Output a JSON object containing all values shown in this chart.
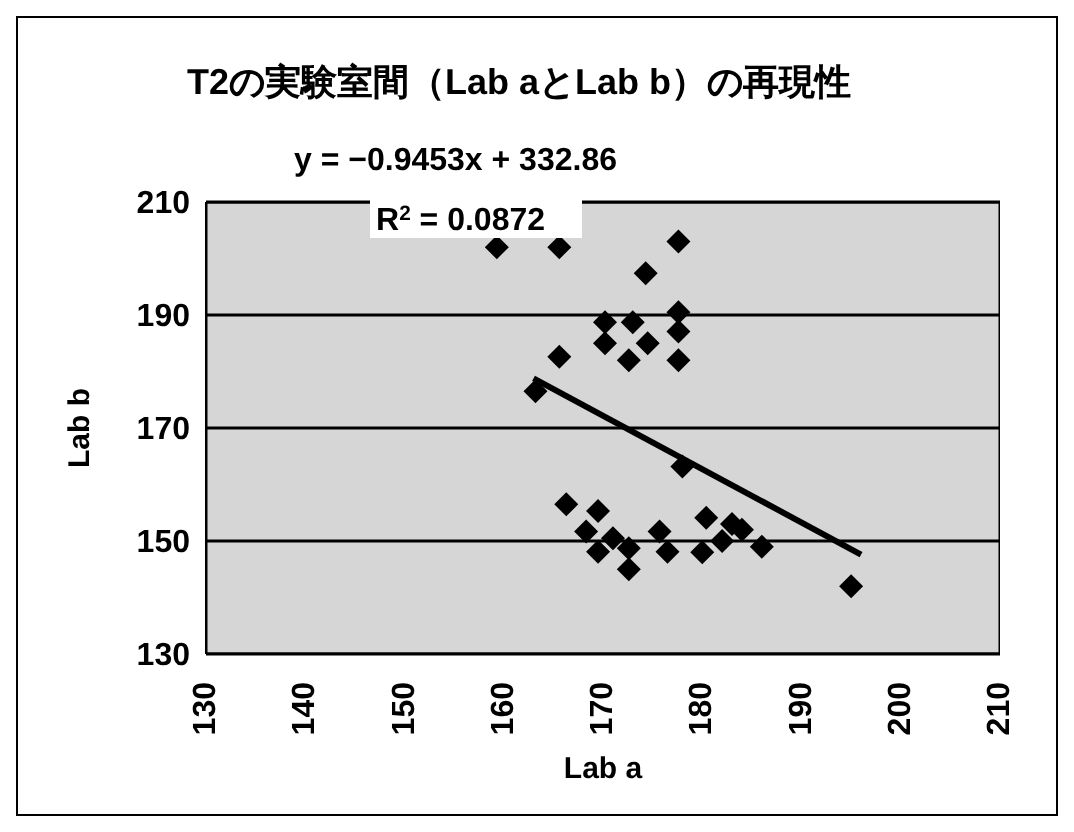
{
  "chart_data": {
    "type": "scatter",
    "title": "T2の実験室間（Lab aとLab  b）の再現性",
    "xlabel": "Lab a",
    "ylabel": "Lab b",
    "annotations": [
      "y = −0.9453x + 332.86",
      "R$^{2}$ = 0.0872"
    ],
    "xlim": [
      130,
      210
    ],
    "xticks": [
      130,
      140,
      150,
      160,
      170,
      180,
      190,
      200,
      210
    ],
    "ylim": [
      130,
      210
    ],
    "yticks": [
      130,
      150,
      170,
      190,
      210
    ],
    "grid": "y",
    "legend": false,
    "series": [
      {
        "color": "#000000",
        "marker": "diamond",
        "x": [
          159.3,
          165.6,
          177.6,
          174.3,
          170.2,
          173.0,
          177.6,
          177.6,
          174.5,
          170.2,
          165.6,
          172.6,
          177.6,
          163.2,
          178.0,
          166.3,
          169.5,
          168.3,
          171.0,
          169.5,
          172.6,
          172.6,
          175.7,
          176.5,
          180.4,
          180.0,
          182.0,
          184.0,
          186.0,
          183.0,
          195.0
        ],
        "values": [
          202.0,
          202.0,
          203.0,
          197.4,
          188.7,
          188.7,
          190.5,
          187.1,
          185.0,
          185.0,
          182.6,
          182.0,
          182.0,
          176.5,
          163.2,
          156.5,
          155.3,
          151.7,
          150.5,
          148.1,
          148.7,
          145.0,
          151.7,
          148.1,
          154.1,
          148.0,
          150.0,
          152.0,
          149.0,
          153.0,
          142.0
        ]
      },
      {
        "type": "line",
        "color": "#000000",
        "marker": "none",
        "line_style": "solid",
        "x": [
          163.0,
          196.0
        ],
        "values": [
          178.8,
          147.6
        ]
      }
    ]
  }
}
